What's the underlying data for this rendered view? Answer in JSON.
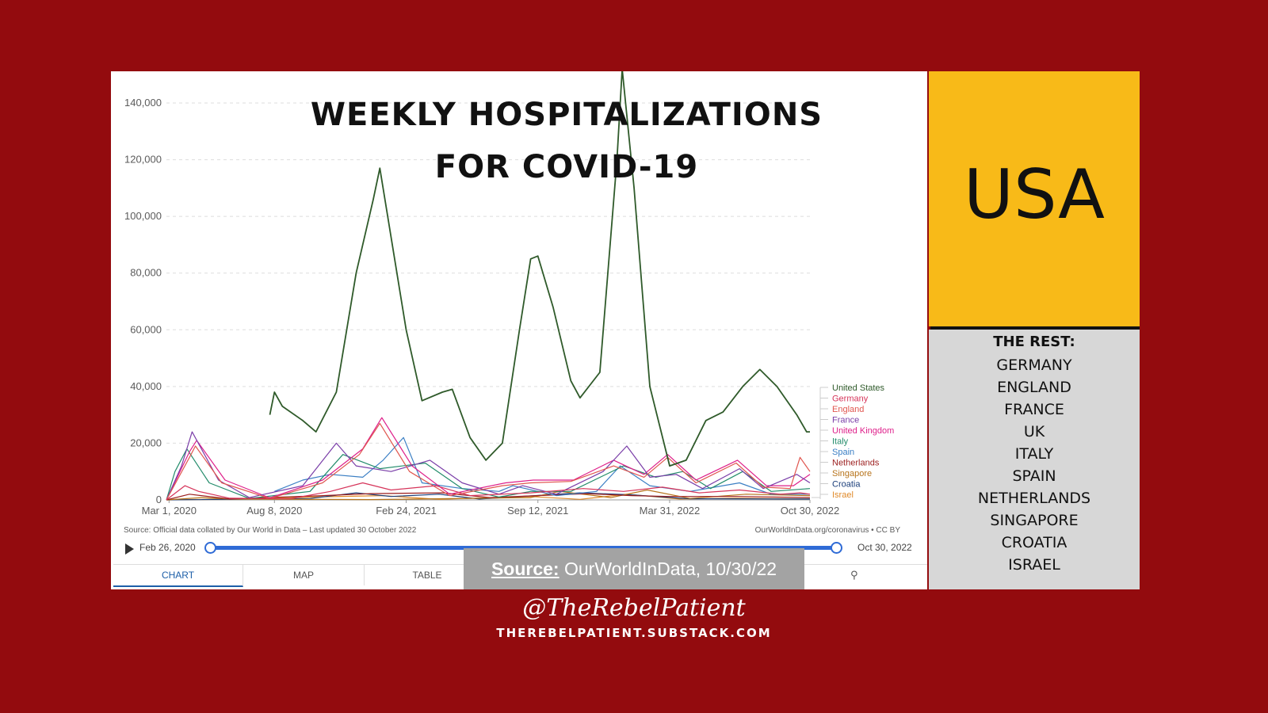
{
  "chart_data": {
    "type": "line",
    "title": "WEEKLY HOSPITALIZATIONS FOR COVID-19",
    "xlabel": "",
    "ylabel": "",
    "x_ticks": [
      "Mar 1, 2020",
      "Aug 8, 2020",
      "Feb 24, 2021",
      "Sep 12, 2021",
      "Mar 31, 2022",
      "Oct 30, 2022"
    ],
    "x_range": [
      "2020-02-26",
      "2022-10-30"
    ],
    "y_ticks": [
      "0",
      "20,000",
      "40,000",
      "60,000",
      "80,000",
      "100,000",
      "120,000",
      "140,000"
    ],
    "ylim": [
      0,
      140000
    ],
    "grid": "horizontal dashed",
    "legend_position": "right",
    "series": [
      {
        "name": "United States",
        "color": "#2f5a2a",
        "x": [
          "2020-08-01",
          "2020-08-08",
          "2020-08-20",
          "2020-09-20",
          "2020-10-10",
          "2020-11-10",
          "2020-12-10",
          "2021-01-05",
          "2021-01-15",
          "2021-02-24",
          "2021-03-20",
          "2021-04-20",
          "2021-05-05",
          "2021-06-01",
          "2021-06-25",
          "2021-07-20",
          "2021-08-15",
          "2021-09-01",
          "2021-09-12",
          "2021-10-05",
          "2021-11-01",
          "2021-11-15",
          "2021-12-15",
          "2022-01-10",
          "2022-01-18",
          "2022-02-05",
          "2022-03-01",
          "2022-03-31",
          "2022-04-25",
          "2022-05-25",
          "2022-06-20",
          "2022-07-20",
          "2022-08-15",
          "2022-09-10",
          "2022-10-10",
          "2022-10-25",
          "2022-10-30"
        ],
        "values": [
          30000,
          38000,
          33000,
          28000,
          24000,
          38000,
          80000,
          106000,
          117000,
          60000,
          35000,
          38000,
          39000,
          22000,
          14000,
          20000,
          60000,
          85000,
          86000,
          68000,
          42000,
          36000,
          45000,
          120000,
          152000,
          110000,
          40000,
          12000,
          14000,
          28000,
          31000,
          40000,
          46000,
          40000,
          30000,
          24000,
          24000
        ]
      },
      {
        "name": "Germany",
        "color": "#d6345a",
        "x": [
          "2020-02-26",
          "2020-03-25",
          "2020-04-15",
          "2020-06-01",
          "2020-09-01",
          "2020-11-01",
          "2020-12-20",
          "2021-02-01",
          "2021-04-10",
          "2021-06-01",
          "2021-09-01",
          "2021-11-20",
          "2022-01-20",
          "2022-03-20",
          "2022-05-15",
          "2022-07-15",
          "2022-09-15",
          "2022-10-15",
          "2022-10-30"
        ],
        "values": [
          0,
          5000,
          3000,
          600,
          400,
          3000,
          6000,
          3500,
          5000,
          1500,
          2500,
          4000,
          3000,
          4500,
          2500,
          3500,
          2000,
          2500,
          2000
        ]
      },
      {
        "name": "England",
        "color": "#e0564f",
        "x": [
          "2020-02-26",
          "2020-04-01",
          "2020-04-10",
          "2020-05-20",
          "2020-08-01",
          "2020-10-20",
          "2020-12-15",
          "2021-01-15",
          "2021-03-01",
          "2021-05-01",
          "2021-07-20",
          "2021-09-01",
          "2021-11-01",
          "2022-01-05",
          "2022-02-20",
          "2022-03-28",
          "2022-05-10",
          "2022-07-10",
          "2022-08-20",
          "2022-09-30",
          "2022-10-15",
          "2022-10-30"
        ],
        "values": [
          0,
          15000,
          19000,
          6000,
          500,
          6000,
          16000,
          27000,
          10000,
          1500,
          5000,
          6000,
          6500,
          12000,
          8000,
          15000,
          6000,
          13000,
          4500,
          4000,
          15000,
          10000
        ]
      },
      {
        "name": "France",
        "color": "#7a3ea8",
        "x": [
          "2020-02-26",
          "2020-03-20",
          "2020-04-05",
          "2020-05-15",
          "2020-07-01",
          "2020-09-20",
          "2020-11-10",
          "2020-12-10",
          "2021-02-01",
          "2021-04-01",
          "2021-05-20",
          "2021-07-15",
          "2021-08-20",
          "2021-10-10",
          "2021-12-20",
          "2022-01-25",
          "2022-03-01",
          "2022-04-10",
          "2022-05-20",
          "2022-07-15",
          "2022-08-20",
          "2022-10-10",
          "2022-10-30"
        ],
        "values": [
          0,
          12000,
          24000,
          7000,
          800,
          5000,
          20000,
          12000,
          10000,
          14000,
          6000,
          2000,
          5000,
          2000,
          10000,
          19000,
          8000,
          9000,
          4000,
          11000,
          4000,
          9000,
          6000
        ]
      },
      {
        "name": "United Kingdom",
        "color": "#de1f8a",
        "x": [
          "2020-02-26",
          "2020-04-01",
          "2020-04-12",
          "2020-05-25",
          "2020-08-01",
          "2020-10-20",
          "2020-12-20",
          "2021-01-18",
          "2021-03-05",
          "2021-05-01",
          "2021-07-25",
          "2021-09-05",
          "2021-11-05",
          "2022-01-05",
          "2022-02-20",
          "2022-03-28",
          "2022-05-10",
          "2022-07-12",
          "2022-08-25",
          "2022-10-05",
          "2022-10-30"
        ],
        "values": [
          0,
          17000,
          21000,
          7000,
          700,
          7000,
          18000,
          29000,
          12000,
          2000,
          6000,
          7000,
          7000,
          14000,
          9000,
          16000,
          7000,
          14000,
          5000,
          5000,
          9000
        ]
      },
      {
        "name": "Italy",
        "color": "#238c6b",
        "x": [
          "2020-02-26",
          "2020-03-10",
          "2020-03-28",
          "2020-05-01",
          "2020-07-01",
          "2020-10-01",
          "2020-11-20",
          "2021-01-15",
          "2021-03-25",
          "2021-05-20",
          "2021-07-15",
          "2021-09-01",
          "2021-11-01",
          "2022-01-20",
          "2022-03-10",
          "2022-04-20",
          "2022-06-01",
          "2022-07-20",
          "2022-09-01",
          "2022-10-30"
        ],
        "values": [
          0,
          10000,
          18000,
          6000,
          500,
          3000,
          16000,
          11000,
          13000,
          4000,
          1000,
          3000,
          3000,
          12000,
          8000,
          10000,
          4000,
          10000,
          3000,
          4000
        ]
      },
      {
        "name": "Spain",
        "color": "#3b7fc4",
        "x": [
          "2020-08-08",
          "2020-09-20",
          "2020-11-01",
          "2020-12-20",
          "2021-01-20",
          "2021-02-20",
          "2021-03-20",
          "2021-05-20",
          "2021-07-15",
          "2021-08-05",
          "2021-10-10",
          "2021-12-10",
          "2022-01-15",
          "2022-03-01",
          "2022-05-01",
          "2022-07-15",
          "2022-09-01",
          "2022-10-30"
        ],
        "values": [
          3000,
          7000,
          9000,
          8000,
          14000,
          22000,
          6000,
          4000,
          3000,
          5000,
          1500,
          3000,
          12000,
          5000,
          3000,
          6000,
          2000,
          2000
        ]
      },
      {
        "name": "Netherlands",
        "color": "#9c1f1f",
        "x": [
          "2020-02-26",
          "2020-04-01",
          "2020-06-01",
          "2020-10-20",
          "2021-01-01",
          "2021-04-20",
          "2021-07-01",
          "2021-11-25",
          "2022-02-01",
          "2022-04-01",
          "2022-07-10",
          "2022-10-30"
        ],
        "values": [
          0,
          2000,
          300,
          1500,
          2200,
          2500,
          800,
          2200,
          1500,
          1200,
          1200,
          800
        ]
      },
      {
        "name": "Singapore",
        "color": "#b7741c",
        "x": [
          "2020-02-26",
          "2020-04-20",
          "2020-06-01",
          "2021-01-01",
          "2021-09-01",
          "2021-10-15",
          "2022-01-01",
          "2022-02-25",
          "2022-05-01",
          "2022-07-25",
          "2022-10-30"
        ],
        "values": [
          0,
          800,
          300,
          100,
          800,
          3000,
          800,
          3500,
          500,
          2000,
          1500
        ]
      },
      {
        "name": "Croatia",
        "color": "#1b3e7a",
        "x": [
          "2020-02-26",
          "2020-10-01",
          "2020-12-10",
          "2021-02-01",
          "2021-04-15",
          "2021-06-15",
          "2021-11-15",
          "2022-02-01",
          "2022-05-01",
          "2022-10-30"
        ],
        "values": [
          0,
          500,
          2500,
          1200,
          2000,
          300,
          2500,
          1800,
          400,
          300
        ]
      },
      {
        "name": "Israel",
        "color": "#e08a2a",
        "x": [
          "2020-02-26",
          "2020-07-15",
          "2020-10-01",
          "2021-01-20",
          "2021-04-15",
          "2021-08-30",
          "2021-11-15",
          "2022-01-25",
          "2022-04-15",
          "2022-07-10",
          "2022-10-30"
        ],
        "values": [
          0,
          400,
          1000,
          1500,
          200,
          1200,
          200,
          2000,
          300,
          600,
          300
        ]
      }
    ],
    "source_note": "Source: Official data collated by Our World in Data – Last updated 30 October 2022",
    "credit_note": "OurWorldInData.org/coronavirus • CC BY"
  },
  "timeline": {
    "start_label": "Feb 26, 2020",
    "end_label": "Oct 30, 2022"
  },
  "tabs": {
    "chart": "CHART",
    "map": "MAP",
    "table": "TABLE"
  },
  "source_box": {
    "label": "Source:",
    "text": " OurWorldInData, 10/30/22"
  },
  "usa_panel": {
    "label": "USA"
  },
  "rest_panel": {
    "title": "THE REST:",
    "countries": [
      "GERMANY",
      "ENGLAND",
      "FRANCE",
      "UK",
      "ITALY",
      "SPAIN",
      "NETHERLANDS",
      "SINGAPORE",
      "CROATIA",
      "ISRAEL"
    ]
  },
  "footer": {
    "handle": "@TheRebelPatient",
    "website": "THEREBELPATIENT.SUBSTACK.COM"
  },
  "colors": {
    "background": "#930b0e",
    "usa_panel": "#f8ba18",
    "rest_panel": "#d7d7d7",
    "timeline_accent": "#2f6bd6"
  }
}
